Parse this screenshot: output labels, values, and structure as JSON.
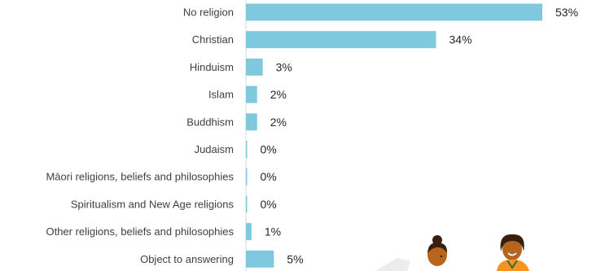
{
  "chart_data": {
    "type": "bar",
    "orientation": "horizontal",
    "categories": [
      "No religion",
      "Christian",
      "Hinduism",
      "Islam",
      "Buddhism",
      "Judaism",
      "Māori religions, beliefs and philosophies",
      "Spiritualism and New Age religions",
      "Other religions, beliefs and philosophies",
      "Object to answering"
    ],
    "values": [
      53,
      34,
      3,
      2,
      2,
      0,
      0,
      0,
      1,
      5
    ],
    "value_labels": [
      "53%",
      "34%",
      "3%",
      "2%",
      "2%",
      "0%",
      "0%",
      "0%",
      "1%",
      "5%"
    ],
    "xlim": [
      0,
      53
    ],
    "bar_color": "#7fc9df",
    "grid": false,
    "legend": "none"
  },
  "decoration": {
    "illustration": "people-illustration",
    "skin_color": "#b5651d",
    "hair_color": "#3a1f0f",
    "top_color": "#f7931e"
  }
}
